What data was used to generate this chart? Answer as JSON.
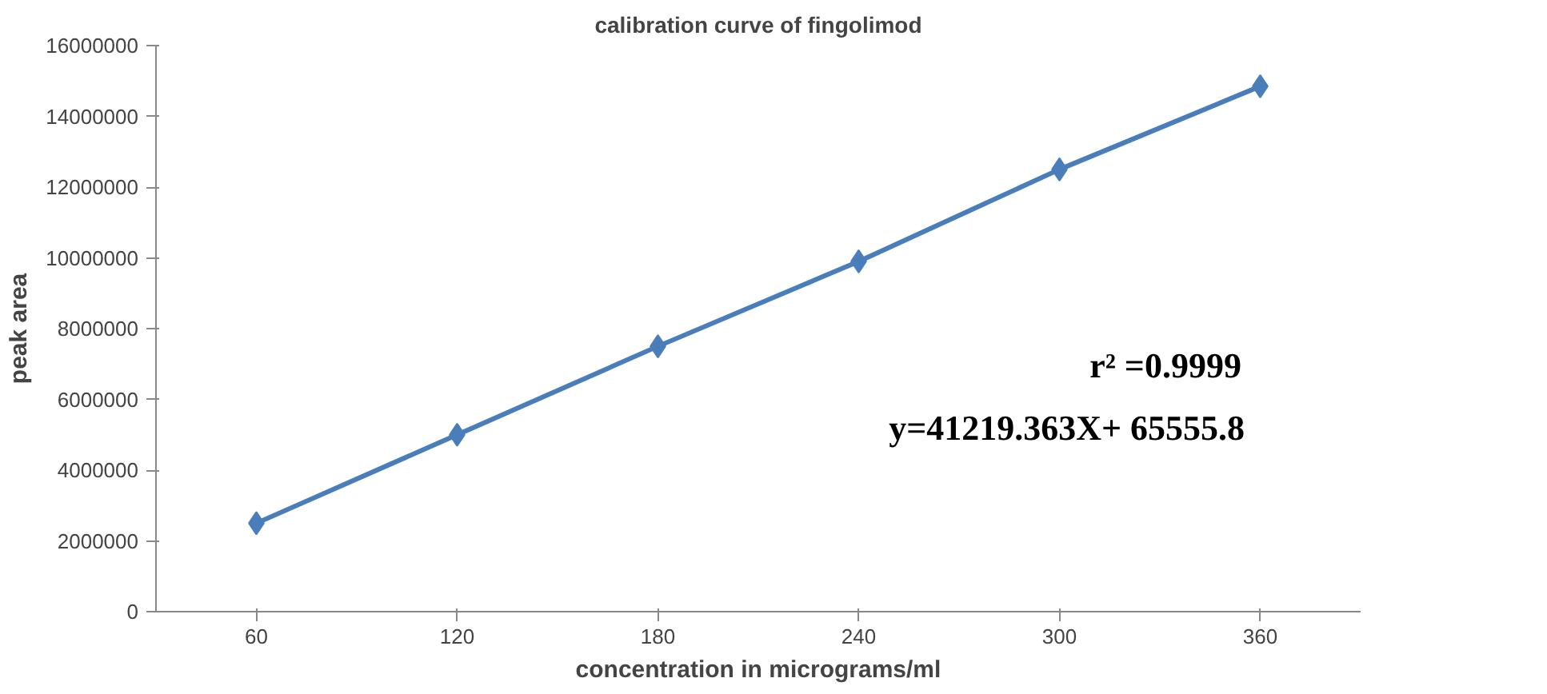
{
  "chart_data": {
    "type": "line",
    "title": "calibration curve of fingolimod",
    "xlabel": "concentration in micrograms/ml",
    "ylabel": "peak area",
    "categories": [
      "60",
      "120",
      "180",
      "240",
      "300",
      "360"
    ],
    "series": [
      {
        "color": "#4a7ebb",
        "values": [
          2500000,
          5000000,
          7500000,
          9900000,
          12500000,
          14850000
        ]
      }
    ],
    "ylim": [
      0,
      16000000
    ],
    "yticks": [
      0,
      2000000,
      4000000,
      6000000,
      8000000,
      10000000,
      12000000,
      14000000,
      16000000
    ],
    "annotations": [
      "r² =0.9999",
      "y=41219.363X+ 65555.8"
    ],
    "marker": "diamond",
    "grid": false
  }
}
